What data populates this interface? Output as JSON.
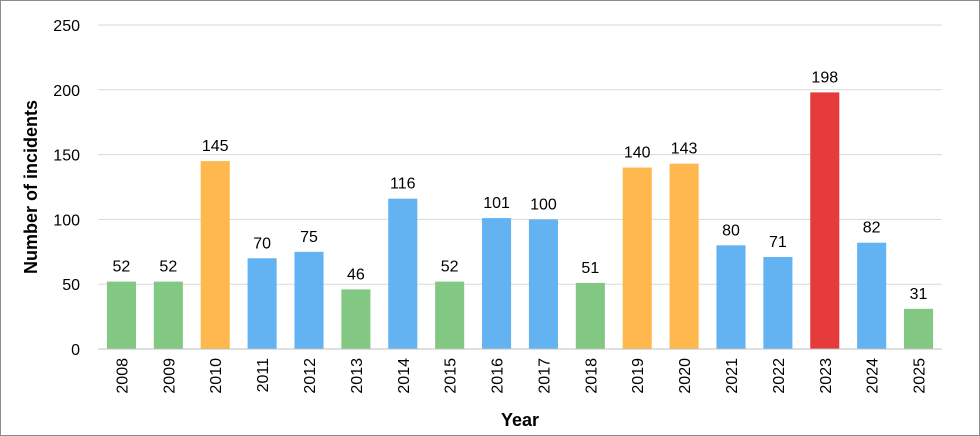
{
  "chart_data": {
    "type": "bar",
    "title": "",
    "xlabel": "Year",
    "ylabel": "Number of incidents",
    "ylim": [
      0,
      250
    ],
    "yticks": [
      0,
      50,
      100,
      150,
      200,
      250
    ],
    "grid": true,
    "legend": "none",
    "categories": [
      "2008",
      "2009",
      "2010",
      "2011",
      "2012",
      "2013",
      "2014",
      "2015",
      "2016",
      "2017",
      "2018",
      "2019",
      "2020",
      "2021",
      "2022",
      "2023",
      "2024",
      "2025"
    ],
    "values": [
      52,
      52,
      145,
      70,
      75,
      46,
      116,
      52,
      101,
      100,
      51,
      140,
      143,
      80,
      71,
      198,
      82,
      31
    ],
    "colors": [
      "#82c882",
      "#82c882",
      "#ffb84d",
      "#63b3f2",
      "#63b3f2",
      "#82c882",
      "#63b3f2",
      "#82c882",
      "#63b3f2",
      "#63b3f2",
      "#82c882",
      "#ffb84d",
      "#ffb84d",
      "#63b3f2",
      "#63b3f2",
      "#e53b3b",
      "#63b3f2",
      "#82c882"
    ]
  }
}
